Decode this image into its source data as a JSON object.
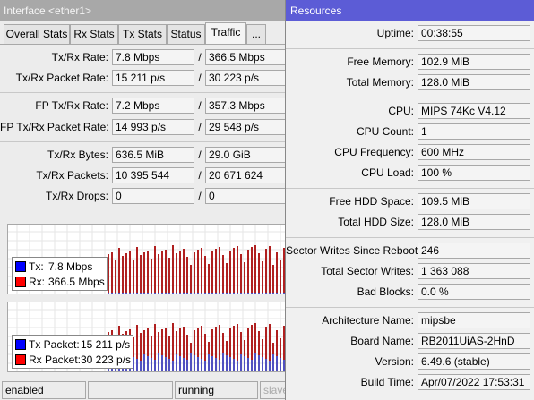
{
  "interface_window": {
    "title": "Interface <ether1>",
    "tabs": [
      "Overall Stats",
      "Rx Stats",
      "Tx Stats",
      "Status",
      "Traffic",
      "..."
    ],
    "active_tab": 4,
    "separator": "/",
    "groups": [
      [
        {
          "label": "Tx/Rx Rate:",
          "tx": "7.8 Mbps",
          "rx": "366.5 Mbps"
        },
        {
          "label": "Tx/Rx Packet Rate:",
          "tx": "15 211 p/s",
          "rx": "30 223 p/s"
        }
      ],
      [
        {
          "label": "FP Tx/Rx Rate:",
          "tx": "7.2 Mbps",
          "rx": "357.3 Mbps"
        },
        {
          "label": "FP Tx/Rx Packet Rate:",
          "tx": "14 993 p/s",
          "rx": "29 548 p/s"
        }
      ],
      [
        {
          "label": "Tx/Rx Bytes:",
          "tx": "636.5 MiB",
          "rx": "29.0 GiB"
        },
        {
          "label": "Tx/Rx Packets:",
          "tx": "10 395 544",
          "rx": "20 671 624"
        },
        {
          "label": "Tx/Rx Drops:",
          "tx": "0",
          "rx": "0"
        }
      ]
    ],
    "graphs": [
      {
        "legend": [
          {
            "label": "Tx:",
            "value": "7.8 Mbps",
            "color": "#0000ff"
          },
          {
            "label": "Rx:",
            "value": "366.5 Mbps",
            "color": "#ff0000"
          }
        ]
      },
      {
        "legend": [
          {
            "label": "Tx Packet:",
            "value": "15 211 p/s",
            "color": "#0000ff"
          },
          {
            "label": "Rx Packet:",
            "value": "30 223 p/s",
            "color": "#ff0000"
          }
        ]
      }
    ],
    "status_bar": [
      "enabled",
      "running",
      "slave"
    ]
  },
  "resources_window": {
    "title": "Resources",
    "groups": [
      [
        {
          "label": "Uptime:",
          "value": "00:38:55"
        }
      ],
      [
        {
          "label": "Free Memory:",
          "value": "102.9 MiB"
        },
        {
          "label": "Total Memory:",
          "value": "128.0 MiB"
        }
      ],
      [
        {
          "label": "CPU:",
          "value": "MIPS 74Kc V4.12"
        },
        {
          "label": "CPU Count:",
          "value": "1"
        },
        {
          "label": "CPU Frequency:",
          "value": "600 MHz"
        },
        {
          "label": "CPU Load:",
          "value": "100 %"
        }
      ],
      [
        {
          "label": "Free HDD Space:",
          "value": "109.5 MiB"
        },
        {
          "label": "Total HDD Size:",
          "value": "128.0 MiB"
        }
      ],
      [
        {
          "label": "Sector Writes Since Reboot:",
          "value": "246"
        },
        {
          "label": "Total Sector Writes:",
          "value": "1 363 088"
        },
        {
          "label": "Bad Blocks:",
          "value": "0.0 %"
        }
      ],
      [
        {
          "label": "Architecture Name:",
          "value": "mipsbe"
        },
        {
          "label": "Board Name:",
          "value": "RB2011UiAS-2HnD"
        },
        {
          "label": "Version:",
          "value": "6.49.6 (stable)"
        },
        {
          "label": "Build Time:",
          "value": "Apr/07/2022 17:53:31"
        }
      ]
    ]
  }
}
